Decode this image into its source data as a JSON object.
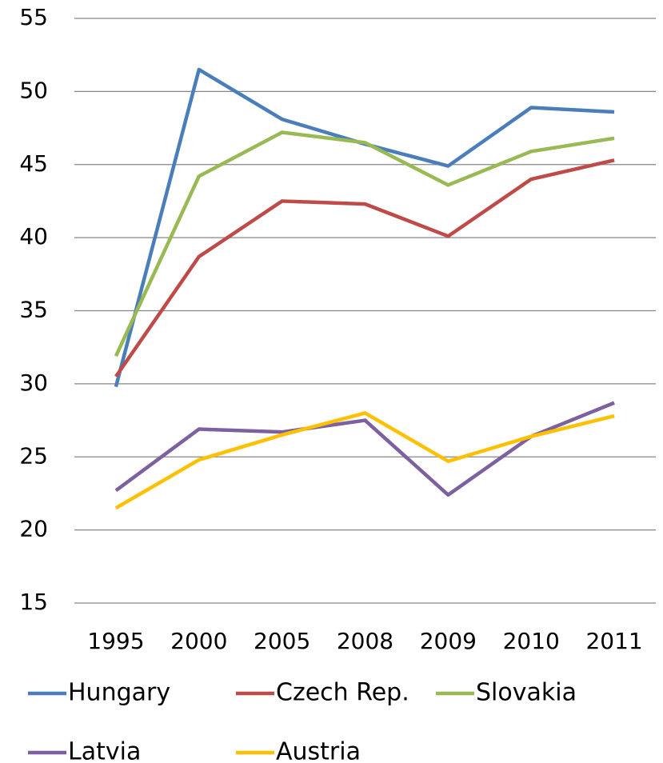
{
  "chart_data": {
    "type": "line",
    "categories": [
      "1995",
      "2000",
      "2005",
      "2008",
      "2009",
      "2010",
      "2011"
    ],
    "series": [
      {
        "name": "Hungary",
        "color": "#4a7ebb",
        "values": [
          29.8,
          51.5,
          48.1,
          46.4,
          44.9,
          48.9,
          48.6
        ]
      },
      {
        "name": "Czech Rep.",
        "color": "#be4b48",
        "values": [
          30.5,
          38.7,
          42.5,
          42.3,
          40.1,
          44.0,
          45.3
        ]
      },
      {
        "name": "Slovakia",
        "color": "#98b954",
        "values": [
          31.9,
          44.2,
          47.2,
          46.5,
          43.6,
          45.9,
          46.8
        ]
      },
      {
        "name": "Latvia",
        "color": "#7d60a0",
        "values": [
          22.7,
          26.9,
          26.7,
          27.5,
          22.4,
          26.4,
          28.7
        ]
      },
      {
        "name": "Austria",
        "color": "#ffc000",
        "values": [
          21.5,
          24.8,
          26.5,
          28.0,
          24.7,
          26.4,
          27.8
        ]
      }
    ],
    "ylim": [
      15,
      55
    ],
    "yticks": [
      15,
      20,
      25,
      30,
      35,
      40,
      45,
      50,
      55
    ],
    "grid": true,
    "legend": "bottom"
  }
}
